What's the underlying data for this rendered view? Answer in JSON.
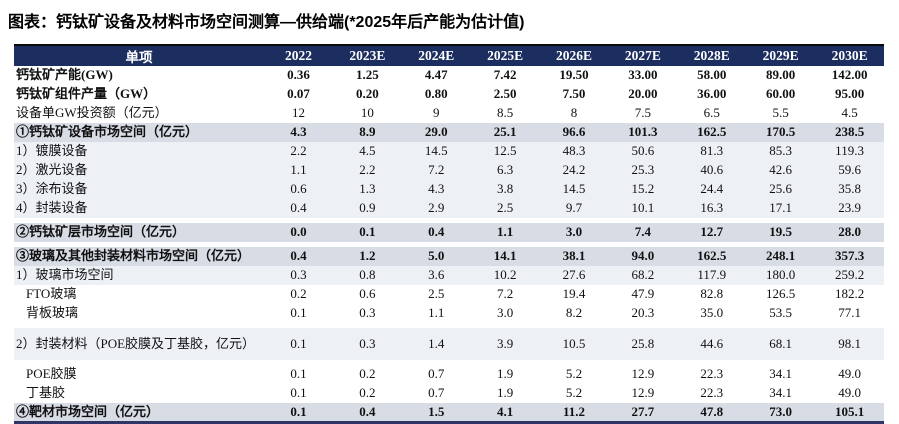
{
  "title": "图表：钙钛矿设备及材料市场空间测算—供给端(*2025年后产能为估计值)",
  "colors": {
    "header_bg": "#1c2e5f",
    "section_row_bg": "#d7dce5",
    "subrow_tint_bg": "#edf0f5",
    "bottom_border": "#2f3566"
  },
  "table": {
    "header": [
      "单项",
      "2022",
      "2023E",
      "2024E",
      "2025E",
      "2026E",
      "2027E",
      "2028E",
      "2029E",
      "2030E"
    ],
    "rows": [
      {
        "label": "钙钛矿产能(GW)",
        "style": "plain-bold",
        "values": [
          "0.36",
          "1.25",
          "4.47",
          "7.42",
          "19.50",
          "33.00",
          "58.00",
          "89.00",
          "142.00"
        ]
      },
      {
        "label": "钙钛矿组件产量（GW）",
        "style": "plain-bold",
        "values": [
          "0.07",
          "0.20",
          "0.80",
          "2.50",
          "7.50",
          "20.00",
          "36.00",
          "60.00",
          "95.00"
        ]
      },
      {
        "label": "设备单GW投资额（亿元）",
        "style": "plain",
        "values": [
          "12",
          "10",
          "9",
          "8.5",
          "8",
          "7.5",
          "6.5",
          "5.5",
          "4.5"
        ]
      },
      {
        "label": "①钙钛矿设备市场空间（亿元）",
        "style": "section",
        "values": [
          "4.3",
          "8.9",
          "29.0",
          "25.1",
          "96.6",
          "101.3",
          "162.5",
          "170.5",
          "238.5"
        ]
      },
      {
        "label": "1）镀膜设备",
        "style": "tint",
        "values": [
          "2.2",
          "4.5",
          "14.5",
          "12.5",
          "48.3",
          "50.6",
          "81.3",
          "85.3",
          "119.3"
        ]
      },
      {
        "label": "2）激光设备",
        "style": "tint",
        "values": [
          "1.1",
          "2.2",
          "7.2",
          "6.3",
          "24.2",
          "25.3",
          "40.6",
          "42.6",
          "59.6"
        ]
      },
      {
        "label": "3）涂布设备",
        "style": "tint",
        "values": [
          "0.6",
          "1.3",
          "4.3",
          "3.8",
          "14.5",
          "15.2",
          "24.4",
          "25.6",
          "35.8"
        ]
      },
      {
        "label": "4）封装设备",
        "style": "tint",
        "values": [
          "0.4",
          "0.9",
          "2.9",
          "2.5",
          "9.7",
          "10.1",
          "16.3",
          "17.1",
          "23.9"
        ]
      },
      {
        "label": "②钙钛矿层市场空间（亿元）",
        "style": "section gap-above",
        "values": [
          "0.0",
          "0.1",
          "0.4",
          "1.1",
          "3.0",
          "7.4",
          "12.7",
          "19.5",
          "28.0"
        ]
      },
      {
        "label": "③玻璃及其他封装材料市场空间（亿元）",
        "style": "section gap-above",
        "values": [
          "0.4",
          "1.2",
          "5.0",
          "14.1",
          "38.1",
          "94.0",
          "162.5",
          "248.1",
          "357.3"
        ]
      },
      {
        "label": "1）玻璃市场空间",
        "style": "tint",
        "values": [
          "0.3",
          "0.8",
          "3.6",
          "10.2",
          "27.6",
          "68.2",
          "117.9",
          "180.0",
          "259.2"
        ]
      },
      {
        "label": "FTO玻璃",
        "style": "plain indent",
        "values": [
          "0.2",
          "0.6",
          "2.5",
          "7.2",
          "19.4",
          "47.9",
          "82.8",
          "126.5",
          "182.2"
        ]
      },
      {
        "label": "背板玻璃",
        "style": "plain indent",
        "values": [
          "0.1",
          "0.3",
          "1.1",
          "3.0",
          "8.2",
          "20.3",
          "35.0",
          "53.5",
          "77.1"
        ]
      },
      {
        "label": "2）封装材料（POE胶膜及丁基胶，亿元）",
        "style": "tint tall gap-above",
        "values": [
          "0.1",
          "0.3",
          "1.4",
          "3.9",
          "10.5",
          "25.8",
          "44.6",
          "68.1",
          "98.1"
        ]
      },
      {
        "label": "POE胶膜",
        "style": "plain indent gap-above",
        "values": [
          "0.1",
          "0.2",
          "0.7",
          "1.9",
          "5.2",
          "12.9",
          "22.3",
          "34.1",
          "49.0"
        ]
      },
      {
        "label": "丁基胶",
        "style": "plain indent",
        "values": [
          "0.1",
          "0.2",
          "0.7",
          "1.9",
          "5.2",
          "12.9",
          "22.3",
          "34.1",
          "49.0"
        ]
      },
      {
        "label": "④靶材市场空间（亿元）",
        "style": "section",
        "values": [
          "0.1",
          "0.4",
          "1.5",
          "4.1",
          "11.2",
          "27.7",
          "47.8",
          "73.0",
          "105.1"
        ]
      }
    ]
  }
}
